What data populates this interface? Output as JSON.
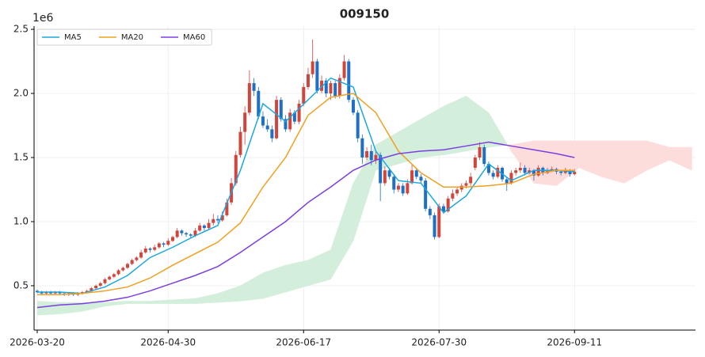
{
  "chart_data": {
    "type": "candlestick",
    "title": "009150",
    "offset_label": "1e6",
    "xlim": [
      -0.7,
      145.8
    ],
    "xticks": [
      {
        "value": 0,
        "label": "2026-03-20"
      },
      {
        "value": 29,
        "label": "2026-04-30"
      },
      {
        "value": 59,
        "label": "2026-06-17"
      },
      {
        "value": 89,
        "label": "2026-07-30"
      },
      {
        "value": 119,
        "label": "2026-09-11"
      }
    ],
    "ylim": [
      0.154,
      2.525
    ],
    "yticks": [
      0.5,
      {
        "value": 1,
        "label": "1.0"
      },
      1.5,
      {
        "value": 2,
        "label": "2.0"
      },
      2.5
    ],
    "grid": true,
    "legend": "upper left",
    "up_color": "#d0463c",
    "down_color": "#1f6fc5",
    "ohlc": [
      [
        0.46,
        0.47,
        0.44,
        0.45
      ],
      [
        0.45,
        0.46,
        0.43,
        0.44
      ],
      [
        0.44,
        0.46,
        0.43,
        0.45
      ],
      [
        0.45,
        0.46,
        0.43,
        0.44
      ],
      [
        0.44,
        0.46,
        0.43,
        0.45
      ],
      [
        0.45,
        0.46,
        0.43,
        0.44
      ],
      [
        0.44,
        0.45,
        0.42,
        0.43
      ],
      [
        0.43,
        0.45,
        0.42,
        0.44
      ],
      [
        0.44,
        0.45,
        0.42,
        0.43
      ],
      [
        0.43,
        0.45,
        0.42,
        0.44
      ],
      [
        0.44,
        0.46,
        0.43,
        0.45
      ],
      [
        0.45,
        0.47,
        0.44,
        0.46
      ],
      [
        0.46,
        0.49,
        0.45,
        0.48
      ],
      [
        0.48,
        0.51,
        0.47,
        0.5
      ],
      [
        0.5,
        0.53,
        0.49,
        0.52
      ],
      [
        0.52,
        0.56,
        0.51,
        0.55
      ],
      [
        0.55,
        0.58,
        0.54,
        0.57
      ],
      [
        0.57,
        0.6,
        0.56,
        0.59
      ],
      [
        0.59,
        0.63,
        0.58,
        0.62
      ],
      [
        0.62,
        0.65,
        0.61,
        0.64
      ],
      [
        0.64,
        0.68,
        0.63,
        0.67
      ],
      [
        0.67,
        0.71,
        0.66,
        0.7
      ],
      [
        0.7,
        0.73,
        0.69,
        0.72
      ],
      [
        0.72,
        0.78,
        0.71,
        0.76
      ],
      [
        0.76,
        0.81,
        0.75,
        0.79
      ],
      [
        0.79,
        0.8,
        0.76,
        0.78
      ],
      [
        0.78,
        0.82,
        0.77,
        0.8
      ],
      [
        0.8,
        0.84,
        0.79,
        0.83
      ],
      [
        0.83,
        0.84,
        0.8,
        0.82
      ],
      [
        0.82,
        0.87,
        0.81,
        0.85
      ],
      [
        0.85,
        0.89,
        0.84,
        0.88
      ],
      [
        0.88,
        0.95,
        0.87,
        0.93
      ],
      [
        0.93,
        0.94,
        0.89,
        0.91
      ],
      [
        0.91,
        0.92,
        0.88,
        0.9
      ],
      [
        0.9,
        0.91,
        0.87,
        0.89
      ],
      [
        0.89,
        0.95,
        0.88,
        0.93
      ],
      [
        0.93,
        0.99,
        0.92,
        0.97
      ],
      [
        0.97,
        0.98,
        0.93,
        0.95
      ],
      [
        0.95,
        1.02,
        0.94,
        0.99
      ],
      [
        0.99,
        1.06,
        0.97,
        1.02
      ],
      [
        1.02,
        1.05,
        0.99,
        1.01
      ],
      [
        1.01,
        1.08,
        1.0,
        1.05
      ],
      [
        1.05,
        1.18,
        1.04,
        1.15
      ],
      [
        1.15,
        1.34,
        1.13,
        1.3
      ],
      [
        1.3,
        1.55,
        1.28,
        1.52
      ],
      [
        1.52,
        1.74,
        1.5,
        1.7
      ],
      [
        1.7,
        1.9,
        1.6,
        1.85
      ],
      [
        1.85,
        2.18,
        1.83,
        2.08
      ],
      [
        2.08,
        2.12,
        1.98,
        2.02
      ],
      [
        2.02,
        2.05,
        1.8,
        1.82
      ],
      [
        1.82,
        1.86,
        1.73,
        1.75
      ],
      [
        1.75,
        1.8,
        1.7,
        1.72
      ],
      [
        1.72,
        1.75,
        1.62,
        1.65
      ],
      [
        1.65,
        1.98,
        1.64,
        1.95
      ],
      [
        1.95,
        1.97,
        1.78,
        1.8
      ],
      [
        1.8,
        1.83,
        1.7,
        1.72
      ],
      [
        1.72,
        1.88,
        1.7,
        1.85
      ],
      [
        1.85,
        1.87,
        1.76,
        1.78
      ],
      [
        1.78,
        1.95,
        1.76,
        1.92
      ],
      [
        1.92,
        2.08,
        1.9,
        2.05
      ],
      [
        2.05,
        2.2,
        2.03,
        2.15
      ],
      [
        2.15,
        2.42,
        2.12,
        2.25
      ],
      [
        2.25,
        2.27,
        2.0,
        2.02
      ],
      [
        2.02,
        2.14,
        2.0,
        2.1
      ],
      [
        2.1,
        2.12,
        1.97,
        2.0
      ],
      [
        2.0,
        2.1,
        1.95,
        2.08
      ],
      [
        2.08,
        2.1,
        1.96,
        1.98
      ],
      [
        1.98,
        2.15,
        1.96,
        2.12
      ],
      [
        2.12,
        2.3,
        2.1,
        2.25
      ],
      [
        2.25,
        2.27,
        1.93,
        1.95
      ],
      [
        1.95,
        1.97,
        1.83,
        1.85
      ],
      [
        1.85,
        1.87,
        1.62,
        1.65
      ],
      [
        1.65,
        1.68,
        1.45,
        1.5
      ],
      [
        1.5,
        1.58,
        1.48,
        1.55
      ],
      [
        1.55,
        1.6,
        1.44,
        1.48
      ],
      [
        1.48,
        1.55,
        1.45,
        1.52
      ],
      [
        1.52,
        1.54,
        1.16,
        1.3
      ],
      [
        1.3,
        1.43,
        1.28,
        1.4
      ],
      [
        1.4,
        1.42,
        1.33,
        1.35
      ],
      [
        1.35,
        1.37,
        1.22,
        1.25
      ],
      [
        1.25,
        1.3,
        1.23,
        1.28
      ],
      [
        1.28,
        1.3,
        1.2,
        1.22
      ],
      [
        1.22,
        1.33,
        1.21,
        1.3
      ],
      [
        1.3,
        1.45,
        1.29,
        1.4
      ],
      [
        1.4,
        1.42,
        1.33,
        1.35
      ],
      [
        1.35,
        1.37,
        1.3,
        1.32
      ],
      [
        1.32,
        1.34,
        1.08,
        1.1
      ],
      [
        1.1,
        1.12,
        1.02,
        1.05
      ],
      [
        1.05,
        1.07,
        0.86,
        0.88
      ],
      [
        0.88,
        1.14,
        0.87,
        1.12
      ],
      [
        1.12,
        1.14,
        1.06,
        1.08
      ],
      [
        1.08,
        1.2,
        1.07,
        1.18
      ],
      [
        1.18,
        1.25,
        1.16,
        1.22
      ],
      [
        1.22,
        1.27,
        1.2,
        1.25
      ],
      [
        1.25,
        1.3,
        1.23,
        1.28
      ],
      [
        1.28,
        1.32,
        1.26,
        1.3
      ],
      [
        1.3,
        1.38,
        1.28,
        1.35
      ],
      [
        1.42,
        1.52,
        1.4,
        1.5
      ],
      [
        1.5,
        1.62,
        1.48,
        1.58
      ],
      [
        1.58,
        1.6,
        1.43,
        1.45
      ],
      [
        1.45,
        1.47,
        1.36,
        1.38
      ],
      [
        1.38,
        1.4,
        1.33,
        1.35
      ],
      [
        1.35,
        1.44,
        1.34,
        1.42
      ],
      [
        1.42,
        1.43,
        1.31,
        1.33
      ],
      [
        1.33,
        1.35,
        1.24,
        1.3
      ],
      [
        1.3,
        1.4,
        1.29,
        1.38
      ],
      [
        1.38,
        1.42,
        1.36,
        1.4
      ],
      [
        1.4,
        1.46,
        1.38,
        1.42
      ],
      [
        1.42,
        1.44,
        1.36,
        1.38
      ],
      [
        1.38,
        1.42,
        1.37,
        1.4
      ],
      [
        1.4,
        1.41,
        1.32,
        1.36
      ],
      [
        1.36,
        1.44,
        1.35,
        1.42
      ],
      [
        1.42,
        1.43,
        1.36,
        1.38
      ],
      [
        1.38,
        1.42,
        1.37,
        1.4
      ],
      [
        1.4,
        1.43,
        1.39,
        1.41
      ],
      [
        1.41,
        1.42,
        1.37,
        1.39
      ],
      [
        1.39,
        1.4,
        1.36,
        1.38
      ],
      [
        1.38,
        1.42,
        1.37,
        1.4
      ],
      [
        1.4,
        1.41,
        1.35,
        1.37
      ],
      [
        1.37,
        1.41,
        1.36,
        1.39
      ]
    ],
    "ma_x": [
      0,
      5,
      10,
      15,
      20,
      25,
      30,
      35,
      40,
      45,
      50,
      55,
      60,
      65,
      70,
      75,
      80,
      85,
      90,
      95,
      100,
      105,
      110,
      115,
      119
    ],
    "series": [
      {
        "name": "MA5",
        "color": "#1ba7de",
        "values": [
          0.45,
          0.45,
          0.44,
          0.49,
          0.58,
          0.72,
          0.8,
          0.89,
          0.97,
          1.4,
          1.92,
          1.78,
          1.95,
          2.12,
          2.05,
          1.55,
          1.32,
          1.3,
          1.07,
          1.2,
          1.45,
          1.32,
          1.4,
          1.4,
          1.39
        ]
      },
      {
        "name": "MA20",
        "color": "#f0a020",
        "values": [
          0.43,
          0.43,
          0.44,
          0.46,
          0.49,
          0.56,
          0.66,
          0.75,
          0.84,
          0.99,
          1.27,
          1.5,
          1.83,
          1.97,
          2.0,
          1.85,
          1.55,
          1.38,
          1.27,
          1.27,
          1.28,
          1.3,
          1.37,
          1.4,
          1.4
        ]
      },
      {
        "name": "MA60",
        "color": "#7b3fe0",
        "values": [
          0.33,
          0.35,
          0.36,
          0.38,
          0.41,
          0.46,
          0.52,
          0.58,
          0.65,
          0.76,
          0.88,
          1.0,
          1.15,
          1.27,
          1.4,
          1.48,
          1.53,
          1.55,
          1.56,
          1.59,
          1.62,
          1.59,
          1.56,
          1.53,
          1.5
        ]
      }
    ],
    "cloud_x": [
      0,
      5,
      10,
      15,
      20,
      25,
      30,
      35,
      40,
      45,
      50,
      55,
      60,
      65,
      70,
      75,
      80,
      85,
      90,
      95,
      100,
      105,
      110,
      115,
      120,
      125,
      130,
      135,
      140,
      145
    ],
    "span_a": [
      0.38,
      0.37,
      0.37,
      0.37,
      0.38,
      0.38,
      0.39,
      0.4,
      0.44,
      0.5,
      0.6,
      0.66,
      0.7,
      0.78,
      1.3,
      1.6,
      1.7,
      1.8,
      1.9,
      1.98,
      1.85,
      1.55,
      1.3,
      1.28,
      1.42,
      1.35,
      1.3,
      1.4,
      1.48,
      1.4
    ],
    "span_b": [
      0.27,
      0.28,
      0.3,
      0.34,
      0.36,
      0.36,
      0.36,
      0.36,
      0.37,
      0.38,
      0.4,
      0.45,
      0.5,
      0.55,
      0.85,
      1.4,
      1.45,
      1.5,
      1.52,
      1.55,
      1.58,
      1.6,
      1.63,
      1.63,
      1.63,
      1.63,
      1.63,
      1.63,
      1.58,
      1.58
    ],
    "cloud_up_color": "#d4eedc",
    "cloud_down_color": "#fddcdc"
  }
}
